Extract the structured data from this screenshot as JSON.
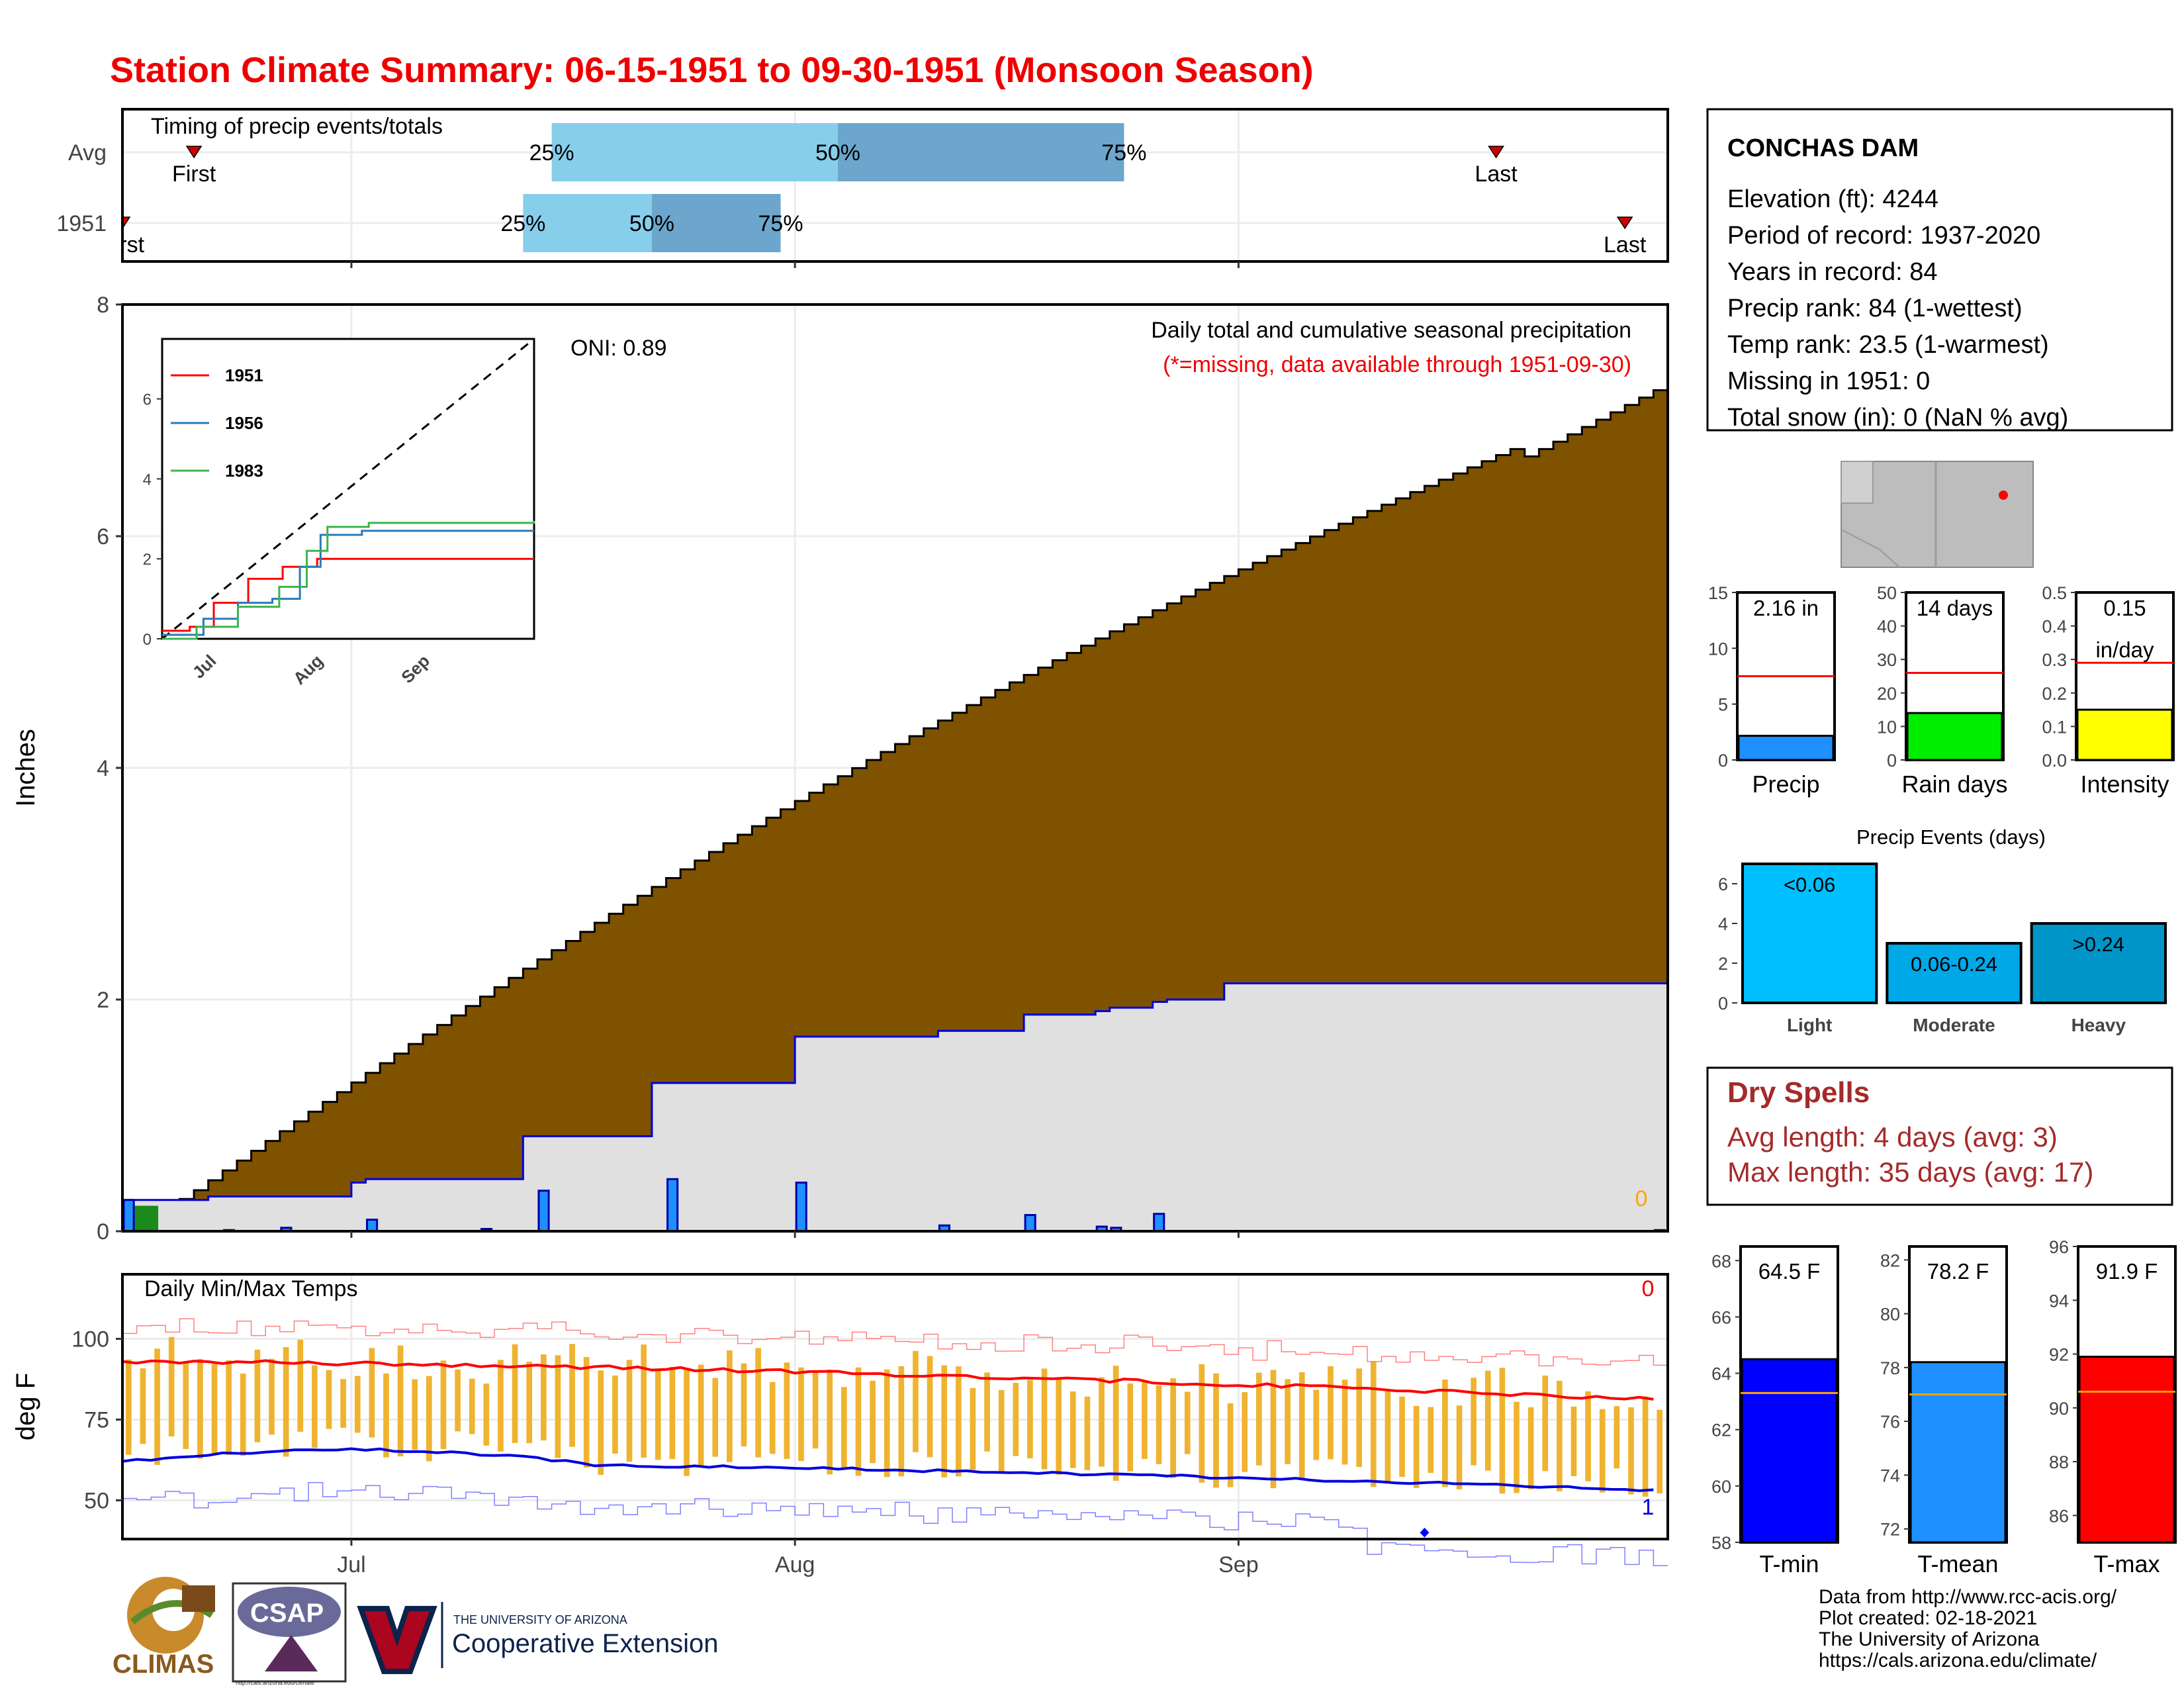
{
  "title": "Station Climate Summary: 06-15-1951 to 09-30-1951 (Monsoon Season)",
  "colors": {
    "title_red": "#ee0000",
    "cum_avg_fill": "#7f5200",
    "cum_year_fill": "#e0e0e0",
    "light_blue": "#87ceeb",
    "steel_blue": "#6ca6cd",
    "dark_red": "#a52a2a",
    "temp_bar": "#efb330",
    "dot_red": "#ff0000"
  },
  "timing": {
    "title": "Timing of precip events/totals",
    "rows": [
      {
        "label": "Avg",
        "first_label": "First",
        "last_label": "Last",
        "first_day": 5,
        "last_day": 96,
        "p25_day": 30,
        "p50_day": 50,
        "p75_day": 70
      },
      {
        "label": "1951",
        "first_label": "First",
        "last_label": "Last",
        "first_day": 0,
        "last_day": 105,
        "p25_day": 28,
        "p50_day": 37,
        "p75_day": 46
      }
    ],
    "pct_labels": [
      "25%",
      "50%",
      "75%"
    ]
  },
  "x_axis": {
    "ticks": [
      {
        "label": "Jul",
        "day": 16
      },
      {
        "label": "Aug",
        "day": 47
      },
      {
        "label": "Sep",
        "day": 78
      }
    ],
    "days": 108
  },
  "station": {
    "name": "CONCHAS DAM",
    "lines": [
      "Elevation (ft): 4244",
      "Period of record: 1937-2020",
      "Years in record: 84",
      "Precip rank: 84 (1-wettest)",
      "Temp rank: 23.5 (1-warmest)",
      "Missing in 1951: 0",
      "Total snow (in): 0 (NaN % avg)"
    ]
  },
  "chart_data": [
    {
      "type": "area",
      "id": "cumulative",
      "title": "Daily total and cumulative seasonal precipitation",
      "subtitle": "(*=missing, data available through 1951-09-30)",
      "ylabel": "Inches",
      "ylim": [
        0,
        8
      ],
      "yticks": [
        0,
        2,
        4,
        6,
        8
      ],
      "oni_label": "ONI: 0.89",
      "missing_count": "0",
      "avg_cumulative_endpoints": {
        "start": 0.05,
        "end": 7.3
      },
      "year_steps": [
        [
          0,
          0.27
        ],
        [
          1,
          0.27
        ],
        [
          6,
          0.3
        ],
        [
          16,
          0.42
        ],
        [
          17,
          0.45
        ],
        [
          28,
          0.82
        ],
        [
          37,
          1.28
        ],
        [
          47,
          1.68
        ],
        [
          57,
          1.73
        ],
        [
          63,
          1.87
        ],
        [
          68,
          1.9
        ],
        [
          69,
          1.93
        ],
        [
          72,
          1.98
        ],
        [
          73,
          2.0
        ],
        [
          77,
          2.14
        ],
        [
          108,
          2.16
        ]
      ],
      "daily_bars": [
        [
          0,
          0.27
        ],
        [
          7,
          0.01
        ],
        [
          11,
          0.03
        ],
        [
          17,
          0.1
        ],
        [
          25,
          0.02
        ],
        [
          29,
          0.35
        ],
        [
          38,
          0.45
        ],
        [
          47,
          0.42
        ],
        [
          57,
          0.05
        ],
        [
          63,
          0.14
        ],
        [
          68,
          0.04
        ],
        [
          69,
          0.03
        ],
        [
          72,
          0.15
        ],
        [
          107,
          0.01
        ]
      ]
    },
    {
      "type": "line",
      "id": "inset",
      "series": [
        {
          "name": "1951",
          "color": "#ff0000",
          "steps": [
            [
              0,
              0.2
            ],
            [
              8,
              0.3
            ],
            [
              15,
              0.9
            ],
            [
              25,
              1.5
            ],
            [
              35,
              1.8
            ],
            [
              45,
              2.0
            ],
            [
              60,
              2.0
            ],
            [
              108,
              2.0
            ]
          ]
        },
        {
          "name": "1956",
          "color": "#2b7bb9",
          "steps": [
            [
              0,
              0.1
            ],
            [
              12,
              0.5
            ],
            [
              22,
              0.9
            ],
            [
              32,
              1.0
            ],
            [
              40,
              1.8
            ],
            [
              46,
              2.6
            ],
            [
              58,
              2.7
            ],
            [
              108,
              2.7
            ]
          ]
        },
        {
          "name": "1983",
          "color": "#3cb44b",
          "steps": [
            [
              0,
              0.0
            ],
            [
              10,
              0.3
            ],
            [
              22,
              0.8
            ],
            [
              34,
              1.3
            ],
            [
              42,
              2.2
            ],
            [
              48,
              2.8
            ],
            [
              60,
              2.9
            ],
            [
              108,
              2.95
            ]
          ]
        }
      ],
      "avg_line": [
        [
          0,
          0
        ],
        [
          108,
          7.3
        ]
      ],
      "yticks": [
        0,
        2,
        4,
        6
      ],
      "xticks": [
        "Jul",
        "Aug",
        "Sep"
      ]
    },
    {
      "type": "bar",
      "id": "totals",
      "panels": [
        {
          "label": "Precip",
          "value": 2.16,
          "value_label": "2.16 in",
          "avg": 7.5,
          "ylim": [
            0,
            15
          ],
          "yticks": [
            0,
            5,
            10,
            15
          ],
          "color": "#1e90ff"
        },
        {
          "label": "Rain days",
          "value": 14,
          "value_label": "14 days",
          "avg": 26,
          "ylim": [
            0,
            50
          ],
          "yticks": [
            0,
            10,
            20,
            30,
            40,
            50
          ],
          "color": "#00ee00"
        },
        {
          "label": "Intensity",
          "value": 0.15,
          "value_label": "0.15",
          "value_label2": "in/day",
          "avg": 0.29,
          "ylim": [
            0,
            0.5
          ],
          "yticks": [
            "0.0",
            "0.1",
            "0.2",
            "0.3",
            "0.4",
            "0.5"
          ],
          "color": "#ffff00"
        }
      ]
    },
    {
      "type": "bar",
      "id": "precip_events",
      "title": "Precip Events (days)",
      "categories": [
        "Light",
        "Moderate",
        "Heavy"
      ],
      "bar_labels": [
        "<0.06",
        "0.06-0.24",
        ">0.24"
      ],
      "values": [
        7,
        3,
        4
      ],
      "ylim": [
        0,
        7
      ],
      "yticks": [
        0,
        2,
        4,
        6
      ],
      "colors": [
        "#00bfff",
        "#00a8e8",
        "#0095c8"
      ]
    },
    {
      "type": "line",
      "id": "temps",
      "title": "Daily Min/Max Temps",
      "ylabel": "deg F",
      "ylim": [
        38,
        120
      ],
      "yticks": [
        50,
        75,
        100
      ],
      "missing_count_max": "0",
      "missing_count_min": "1",
      "avg_max": {
        "start": 93,
        "end": 81
      },
      "avg_min": {
        "start": 62,
        "end": 53
      }
    },
    {
      "type": "bar",
      "id": "temp_summary",
      "panels": [
        {
          "label": "T-min",
          "value": 64.5,
          "value_label": "64.5 F",
          "avg": 63.3,
          "ylim": [
            58,
            68.5
          ],
          "yticks": [
            58,
            60,
            62,
            64,
            66,
            68
          ],
          "color": "#0000ff"
        },
        {
          "label": "T-mean",
          "value": 78.2,
          "value_label": "78.2 F",
          "avg": 77.0,
          "ylim": [
            71.5,
            82.5
          ],
          "yticks": [
            72,
            74,
            76,
            78,
            80,
            82
          ],
          "color": "#1e90ff"
        },
        {
          "label": "T-max",
          "value": 91.9,
          "value_label": "91.9 F",
          "avg": 90.6,
          "ylim": [
            85,
            96
          ],
          "yticks": [
            86,
            88,
            90,
            92,
            94,
            96
          ],
          "color": "#ff0000"
        }
      ]
    }
  ],
  "dry_spells": {
    "title": "Dry Spells",
    "avg_line": "Avg length: 4 days (avg: 3)",
    "max_line": "Max length: 35 days (avg: 17)"
  },
  "credits": [
    "Data from http://www.rcc-acis.org/",
    "Plot created: 02-18-2021",
    "The University of Arizona",
    "https://cals.arizona.edu/climate/"
  ],
  "logos": {
    "climas": "CLIMAS",
    "csap": "CSAP",
    "csap_url": "http://cals.arizona.edu/climate",
    "ua_small": "THE UNIVERSITY OF ARIZONA",
    "ua_big": "Cooperative Extension"
  }
}
